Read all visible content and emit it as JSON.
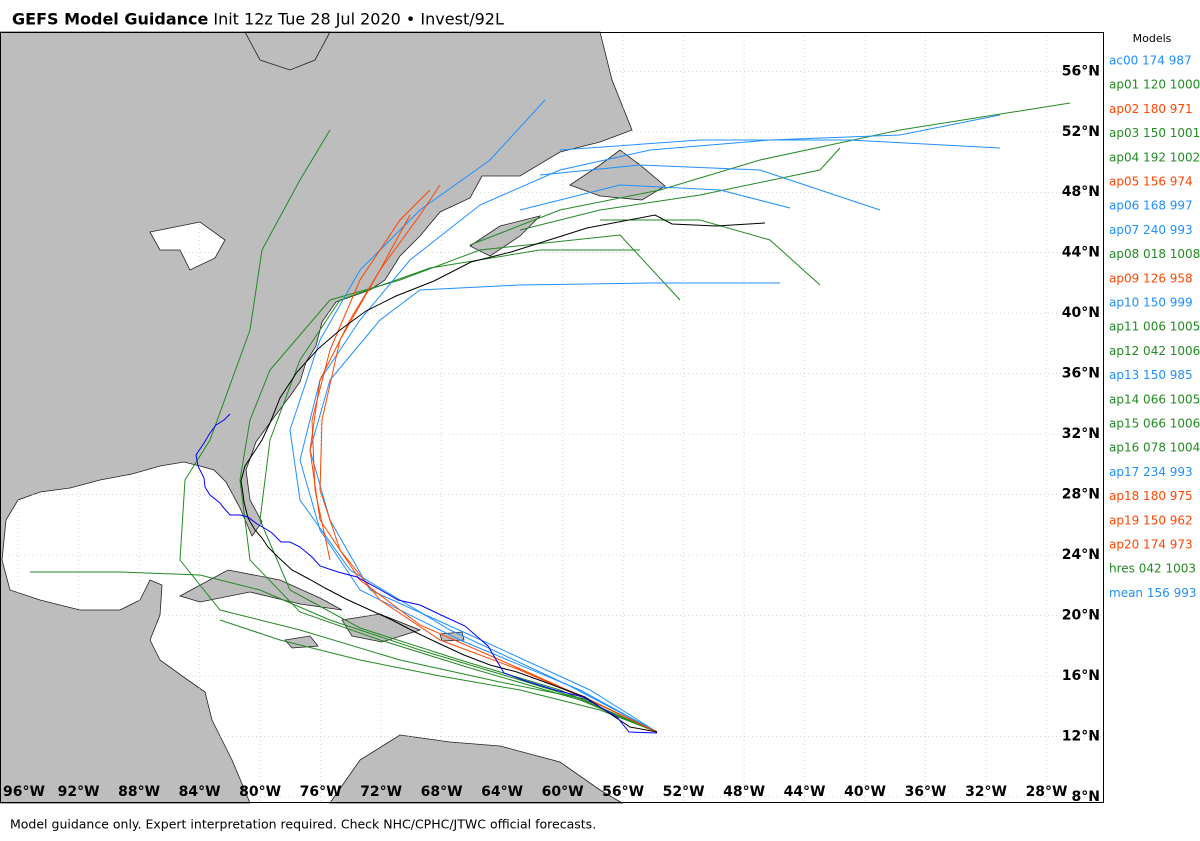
{
  "chart_data": {
    "type": "map",
    "title": "GEFS Model Guidance",
    "subtitle": "Init 12z Tue 28 Jul 2020 • Invest/92L",
    "footer": "Model guidance only. Expert interpretation required. Check NHC/CPHC/JTWC official forecasts.",
    "xlim": [
      -97.2,
      -24.2
    ],
    "ylim": [
      7.6,
      58.6
    ],
    "grid": true,
    "xticks": [
      {
        "value": -96,
        "label": "96°W"
      },
      {
        "value": -92,
        "label": "92°W"
      },
      {
        "value": -88,
        "label": "88°W"
      },
      {
        "value": -84,
        "label": "84°W"
      },
      {
        "value": -80,
        "label": "80°W"
      },
      {
        "value": -76,
        "label": "76°W"
      },
      {
        "value": -72,
        "label": "72°W"
      },
      {
        "value": -68,
        "label": "68°W"
      },
      {
        "value": -64,
        "label": "64°W"
      },
      {
        "value": -60,
        "label": "60°W"
      },
      {
        "value": -56,
        "label": "56°W"
      },
      {
        "value": -52,
        "label": "52°W"
      },
      {
        "value": -48,
        "label": "48°W"
      },
      {
        "value": -44,
        "label": "44°W"
      },
      {
        "value": -40,
        "label": "40°W"
      },
      {
        "value": -36,
        "label": "36°W"
      },
      {
        "value": -32,
        "label": "32°W"
      },
      {
        "value": -28,
        "label": "28°W"
      }
    ],
    "yticks": [
      {
        "value": 8,
        "label": "8°N"
      },
      {
        "value": 12,
        "label": "12°N"
      },
      {
        "value": 16,
        "label": "16°N"
      },
      {
        "value": 20,
        "label": "20°N"
      },
      {
        "value": 24,
        "label": "24°N"
      },
      {
        "value": 28,
        "label": "28°N"
      },
      {
        "value": 32,
        "label": "32°N"
      },
      {
        "value": 36,
        "label": "36°N"
      },
      {
        "value": 40,
        "label": "40°N"
      },
      {
        "value": 44,
        "label": "44°N"
      },
      {
        "value": 48,
        "label": "48°N"
      },
      {
        "value": 52,
        "label": "52°N"
      },
      {
        "value": 56,
        "label": "56°N"
      }
    ],
    "legend": {
      "title": "Models",
      "entries": [
        {
          "label": "ac00 174 987",
          "color": "#1e90ff"
        },
        {
          "label": "ap01 120 1000",
          "color": "#228b22"
        },
        {
          "label": "ap02 180 971",
          "color": "#ff4500"
        },
        {
          "label": "ap03 150 1001",
          "color": "#228b22"
        },
        {
          "label": "ap04 192 1002",
          "color": "#228b22"
        },
        {
          "label": "ap05 156 974",
          "color": "#ff4500"
        },
        {
          "label": "ap06 168 997",
          "color": "#1e90ff"
        },
        {
          "label": "ap07 240 993",
          "color": "#1e90ff"
        },
        {
          "label": "ap08 018 1008",
          "color": "#228b22"
        },
        {
          "label": "ap09 126 958",
          "color": "#ff4500"
        },
        {
          "label": "ap10 150 999",
          "color": "#1e90ff"
        },
        {
          "label": "ap11 006 1005",
          "color": "#228b22"
        },
        {
          "label": "ap12 042 1006",
          "color": "#228b22"
        },
        {
          "label": "ap13 150 985",
          "color": "#1e90ff"
        },
        {
          "label": "ap14 066 1005",
          "color": "#228b22"
        },
        {
          "label": "ap15 066 1006",
          "color": "#228b22"
        },
        {
          "label": "ap16 078 1004",
          "color": "#228b22"
        },
        {
          "label": "ap17 234 993",
          "color": "#1e90ff"
        },
        {
          "label": "ap18 180 975",
          "color": "#ff4500"
        },
        {
          "label": "ap19 150 962",
          "color": "#ff4500"
        },
        {
          "label": "ap20 174 973",
          "color": "#ff4500"
        },
        {
          "label": "hres 042 1003",
          "color": "#228b22"
        },
        {
          "label": "mean 156 993",
          "color": "#1e90ff"
        }
      ]
    }
  }
}
